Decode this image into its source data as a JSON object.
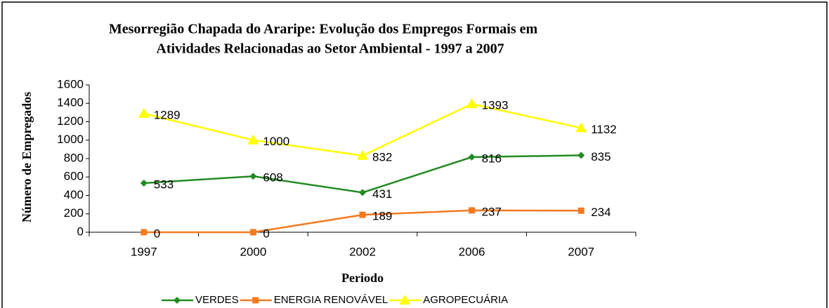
{
  "chart_data": {
    "type": "line",
    "title": [
      "Mesorregião Chapada do Araripe: Evolução dos Empregos Formais em",
      "Atividades Relacionadas ao Setor Ambiental - 1997 a 2007"
    ],
    "xlabel": "Periodo",
    "ylabel": "Número de Empregados",
    "categories": [
      "1997",
      "2000",
      "2002",
      "2006",
      "2007"
    ],
    "series": [
      {
        "name": "VERDES",
        "color": "#228b22",
        "marker": "diamond",
        "values": [
          533,
          608,
          431,
          816,
          835
        ]
      },
      {
        "name": "ENERGIA RENOVÁVEL",
        "color": "#f47a20",
        "marker": "square",
        "values": [
          0,
          0,
          189,
          237,
          234
        ]
      },
      {
        "name": "AGROPECUÁRIA",
        "color": "#ffff00",
        "marker": "triangle",
        "values": [
          1289,
          1000,
          832,
          1393,
          1132
        ]
      }
    ],
    "ylim": [
      0,
      1600
    ],
    "yticks": [
      0,
      200,
      400,
      600,
      800,
      1000,
      1200,
      1400,
      1600
    ],
    "legend": "bottom"
  }
}
